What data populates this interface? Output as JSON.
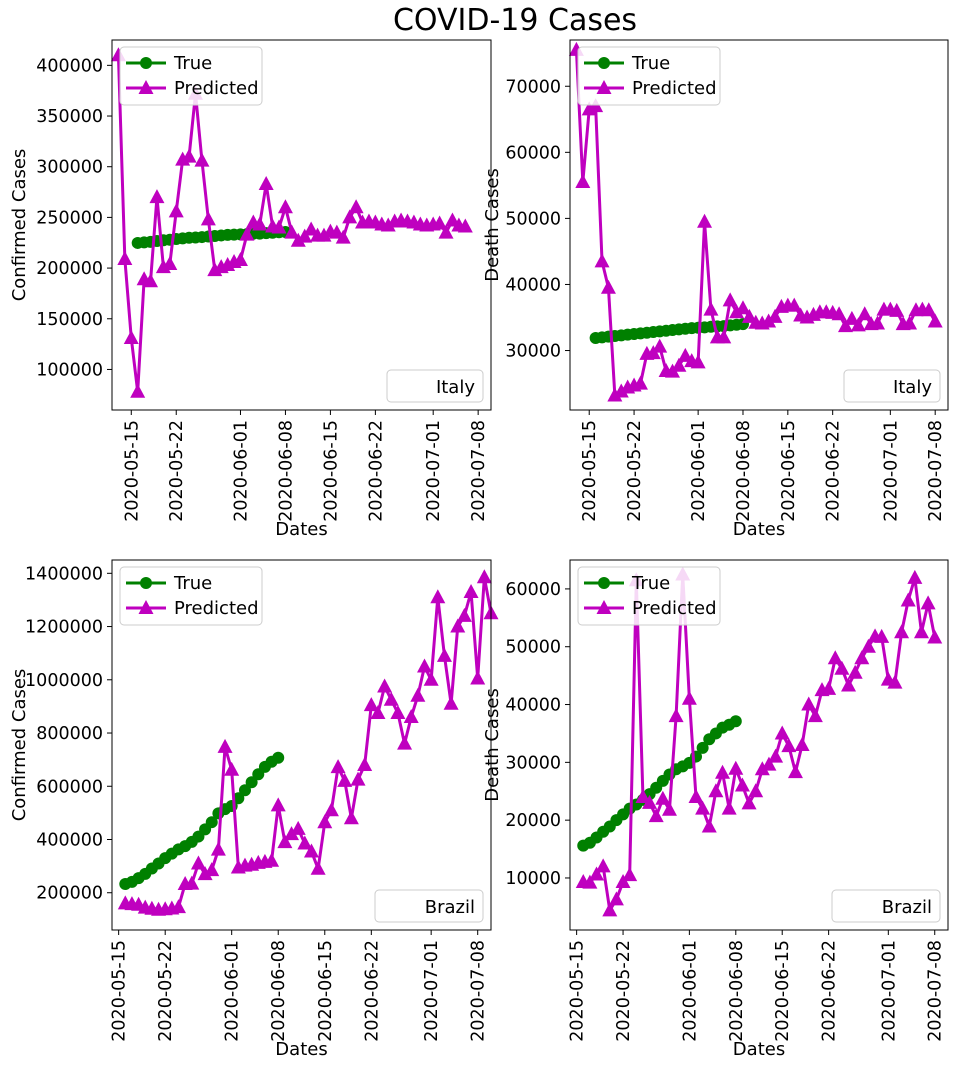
{
  "figure": {
    "title": "COVID-19 Cases"
  },
  "colors": {
    "true": "#008000",
    "predicted": "#bf00bf"
  },
  "chart_data": [
    {
      "id": "italy_confirmed",
      "type": "line",
      "location": "Italy",
      "xlabel": "Dates",
      "ylabel": "Confirmed Cases",
      "xlim": [
        "2020-05-12",
        "2020-07-10"
      ],
      "ylim": [
        60000,
        425000
      ],
      "yticks": [
        100000,
        150000,
        200000,
        250000,
        300000,
        350000,
        400000
      ],
      "xticks": [
        "2020-05-15",
        "2020-05-22",
        "2020-06-01",
        "2020-06-08",
        "2020-06-15",
        "2020-06-22",
        "2020-07-01",
        "2020-07-08"
      ],
      "legend": [
        "True",
        "Predicted"
      ],
      "legend_position": "upper left",
      "series": [
        {
          "name": "True",
          "start": "2020-05-16",
          "values": [
            224800,
            225400,
            225900,
            226700,
            227400,
            228000,
            228700,
            229300,
            229900,
            230200,
            230600,
            231100,
            231700,
            232200,
            232700,
            233000,
            233200,
            233500,
            233800,
            234000,
            234500,
            234800,
            235300,
            235600
          ]
        },
        {
          "name": "Predicted",
          "start": "2020-05-13",
          "values": [
            410000,
            209000,
            131000,
            78000,
            189000,
            187000,
            270000,
            201000,
            204000,
            256000,
            307000,
            310000,
            372000,
            306000,
            248000,
            198000,
            201000,
            203000,
            206000,
            208000,
            233000,
            245000,
            243000,
            283000,
            241000,
            240000,
            260000,
            235000,
            227000,
            231000,
            238000,
            232000,
            232000,
            236000,
            235000,
            230000,
            250000,
            260000,
            245000,
            246000,
            245000,
            243000,
            242000,
            246000,
            247000,
            246000,
            245000,
            243000,
            242000,
            243000,
            244000,
            235000,
            247000,
            242000,
            241000
          ]
        }
      ]
    },
    {
      "id": "italy_deaths",
      "type": "line",
      "location": "Italy",
      "xlabel": "Dates",
      "ylabel": "Death Cases",
      "xlim": [
        "2020-05-12",
        "2020-07-10"
      ],
      "ylim": [
        21000,
        77000
      ],
      "yticks": [
        30000,
        40000,
        50000,
        60000,
        70000
      ],
      "xticks": [
        "2020-05-15",
        "2020-05-22",
        "2020-06-01",
        "2020-06-08",
        "2020-06-15",
        "2020-06-22",
        "2020-07-01",
        "2020-07-08"
      ],
      "legend": [
        "True",
        "Predicted"
      ],
      "legend_position": "upper left",
      "series": [
        {
          "name": "True",
          "start": "2020-05-16",
          "values": [
            31900,
            32000,
            32100,
            32200,
            32300,
            32400,
            32500,
            32600,
            32700,
            32800,
            32900,
            33000,
            33100,
            33200,
            33300,
            33400,
            33450,
            33500,
            33600,
            33650,
            33700,
            33800,
            33900,
            34000
          ]
        },
        {
          "name": "Predicted",
          "start": "2020-05-13",
          "values": [
            75500,
            55500,
            66500,
            67000,
            43500,
            39500,
            23200,
            23800,
            24400,
            24700,
            25000,
            29500,
            29600,
            30600,
            26900,
            26800,
            27700,
            29200,
            28400,
            28200,
            49500,
            36200,
            32000,
            32000,
            37600,
            35800,
            36400,
            35100,
            34200,
            34100,
            34400,
            35100,
            36600,
            36800,
            36800,
            35300,
            35000,
            35400,
            35800,
            35800,
            35700,
            35500,
            33700,
            34800,
            33800,
            35500,
            34000,
            34100,
            36200,
            36200,
            36000,
            34000,
            34100,
            36100,
            36200,
            36100,
            34400
          ]
        }
      ]
    },
    {
      "id": "brazil_confirmed",
      "type": "line",
      "location": "Brazil",
      "xlabel": "Dates",
      "ylabel": "Confirmed Cases",
      "xlim": [
        "2020-05-14",
        "2020-07-10"
      ],
      "ylim": [
        60000,
        1450000
      ],
      "yticks": [
        200000,
        400000,
        600000,
        800000,
        1000000,
        1200000,
        1400000
      ],
      "xticks": [
        "2020-05-15",
        "2020-05-22",
        "2020-06-01",
        "2020-06-08",
        "2020-06-15",
        "2020-06-22",
        "2020-07-01",
        "2020-07-08"
      ],
      "legend": [
        "True",
        "Predicted"
      ],
      "legend_position": "upper left",
      "series": [
        {
          "name": "True",
          "start": "2020-05-16",
          "values": [
            233000,
            241000,
            255000,
            271000,
            291000,
            310000,
            330000,
            347000,
            363000,
            375000,
            391000,
            411000,
            438000,
            465000,
            498000,
            514000,
            526000,
            555000,
            585000,
            615000,
            645000,
            673000,
            692000,
            707000
          ]
        },
        {
          "name": "Predicted",
          "start": "2020-05-16",
          "values": [
            160000,
            157000,
            155000,
            144000,
            140000,
            136000,
            138000,
            141000,
            146000,
            233000,
            234000,
            310000,
            270000,
            285000,
            362000,
            748000,
            662000,
            295000,
            302000,
            305000,
            312000,
            316000,
            320000,
            528000,
            390000,
            420000,
            440000,
            385000,
            355000,
            290000,
            465000,
            510000,
            672000,
            620000,
            480000,
            625000,
            680000,
            905000,
            875000,
            975000,
            925000,
            875000,
            760000,
            860000,
            940000,
            1050000,
            1000000,
            1310000,
            1090000,
            910000,
            1200000,
            1240000,
            1330000,
            1005000,
            1385000,
            1250000
          ]
        }
      ]
    },
    {
      "id": "brazil_deaths",
      "type": "line",
      "location": "Brazil",
      "xlabel": "Dates",
      "ylabel": "Death Cases",
      "xlim": [
        "2020-05-14",
        "2020-07-10"
      ],
      "ylim": [
        1000,
        65000
      ],
      "yticks": [
        10000,
        20000,
        30000,
        40000,
        50000,
        60000
      ],
      "xticks": [
        "2020-05-15",
        "2020-05-22",
        "2020-06-01",
        "2020-06-08",
        "2020-06-15",
        "2020-06-22",
        "2020-07-01",
        "2020-07-08"
      ],
      "legend": [
        "True",
        "Predicted"
      ],
      "legend_position": "upper left",
      "series": [
        {
          "name": "True",
          "start": "2020-05-16",
          "values": [
            15600,
            16100,
            17000,
            18000,
            18900,
            20000,
            21000,
            22000,
            22700,
            23500,
            24500,
            25600,
            26800,
            27900,
            28800,
            29300,
            29900,
            31000,
            32500,
            34000,
            35000,
            36000,
            36500,
            37100
          ]
        },
        {
          "name": "Predicted",
          "start": "2020-05-16",
          "values": [
            9300,
            9200,
            10600,
            12000,
            4400,
            6300,
            9300,
            10500,
            61500,
            24000,
            23000,
            20700,
            23700,
            21800,
            38000,
            62500,
            41000,
            24000,
            22000,
            18900,
            25000,
            28200,
            22000,
            28900,
            26000,
            22900,
            25000,
            28800,
            29600,
            31000,
            35000,
            32800,
            28300,
            33000,
            40000,
            38000,
            42500,
            42700,
            48000,
            46200,
            43300,
            45500,
            48000,
            50000,
            51800,
            51700,
            44300,
            43800,
            52500,
            58000,
            61900,
            52500,
            57500,
            51600
          ]
        }
      ]
    }
  ]
}
